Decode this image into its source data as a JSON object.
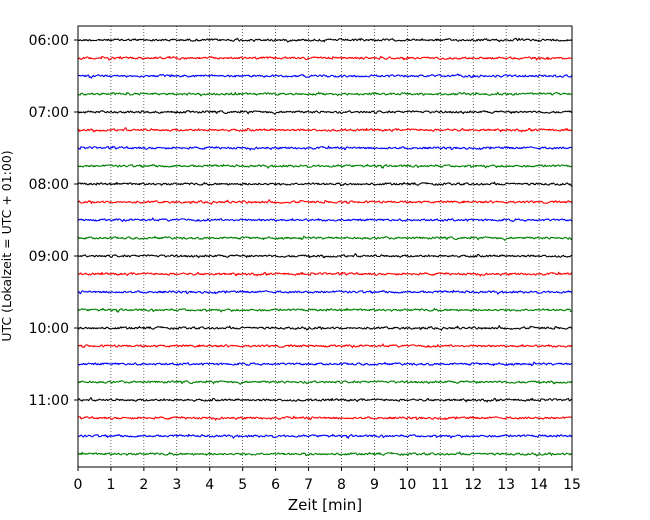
{
  "chart_data": {
    "type": "line",
    "title": "",
    "xlabel": "Zeit  [min]",
    "ylabel": "UTC (Lokalzeit = UTC + 01:00)",
    "xlim": [
      0,
      15
    ],
    "x_ticks": [
      0,
      1,
      2,
      3,
      4,
      5,
      6,
      7,
      8,
      9,
      10,
      11,
      12,
      13,
      14,
      15
    ],
    "y_tick_labels": [
      "06:00",
      "07:00",
      "08:00",
      "09:00",
      "10:00",
      "11:00"
    ],
    "grid": "vertical dotted at each minute",
    "legend": "none",
    "trace_minutes": 15,
    "trace_start_times": [
      "06:00",
      "06:15",
      "06:30",
      "06:45",
      "07:00",
      "07:15",
      "07:30",
      "07:45",
      "08:00",
      "08:15",
      "08:30",
      "08:45",
      "09:00",
      "09:15",
      "09:30",
      "09:45",
      "10:00",
      "10:15",
      "10:30",
      "10:45",
      "11:00",
      "11:15",
      "11:30",
      "11:45"
    ],
    "trace_colors": [
      "#000000",
      "#ff0000",
      "#0000ff",
      "#008000"
    ],
    "signal": "continuous seismogram noise, small amplitude"
  }
}
